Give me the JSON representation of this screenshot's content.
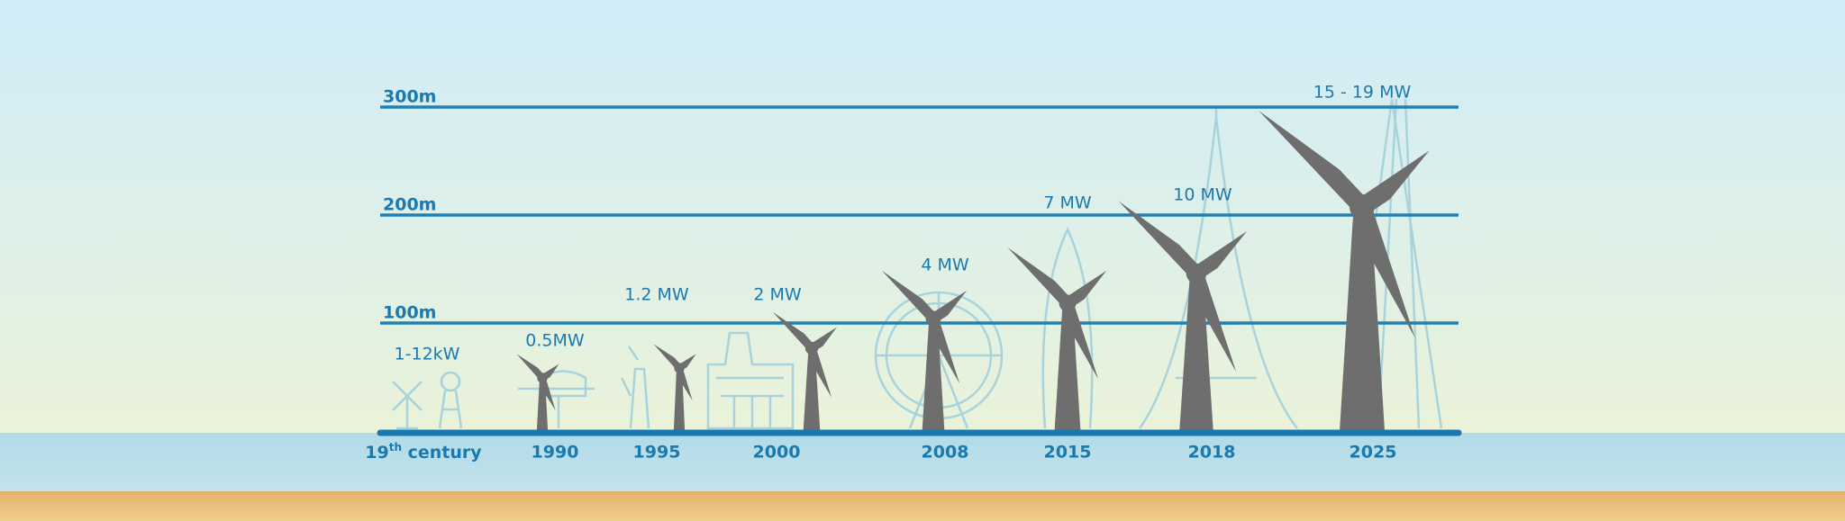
{
  "heights": [
    "300m",
    "200m",
    "100m"
  ],
  "eras": [
    {
      "year": {
        "main": "19",
        "sup": "th",
        "rest": " century"
      },
      "power": "1-12kW"
    },
    {
      "year": "1990",
      "power": "0.5MW"
    },
    {
      "year": "1995",
      "power": "1.2 MW"
    },
    {
      "year": "2000",
      "power": "2 MW"
    },
    {
      "year": "2008",
      "power": "4 MW"
    },
    {
      "year": "2015",
      "power": "7 MW"
    },
    {
      "year": "2018",
      "power": "10 MW"
    },
    {
      "year": "2025",
      "power": "15 - 19 MW"
    }
  ]
}
